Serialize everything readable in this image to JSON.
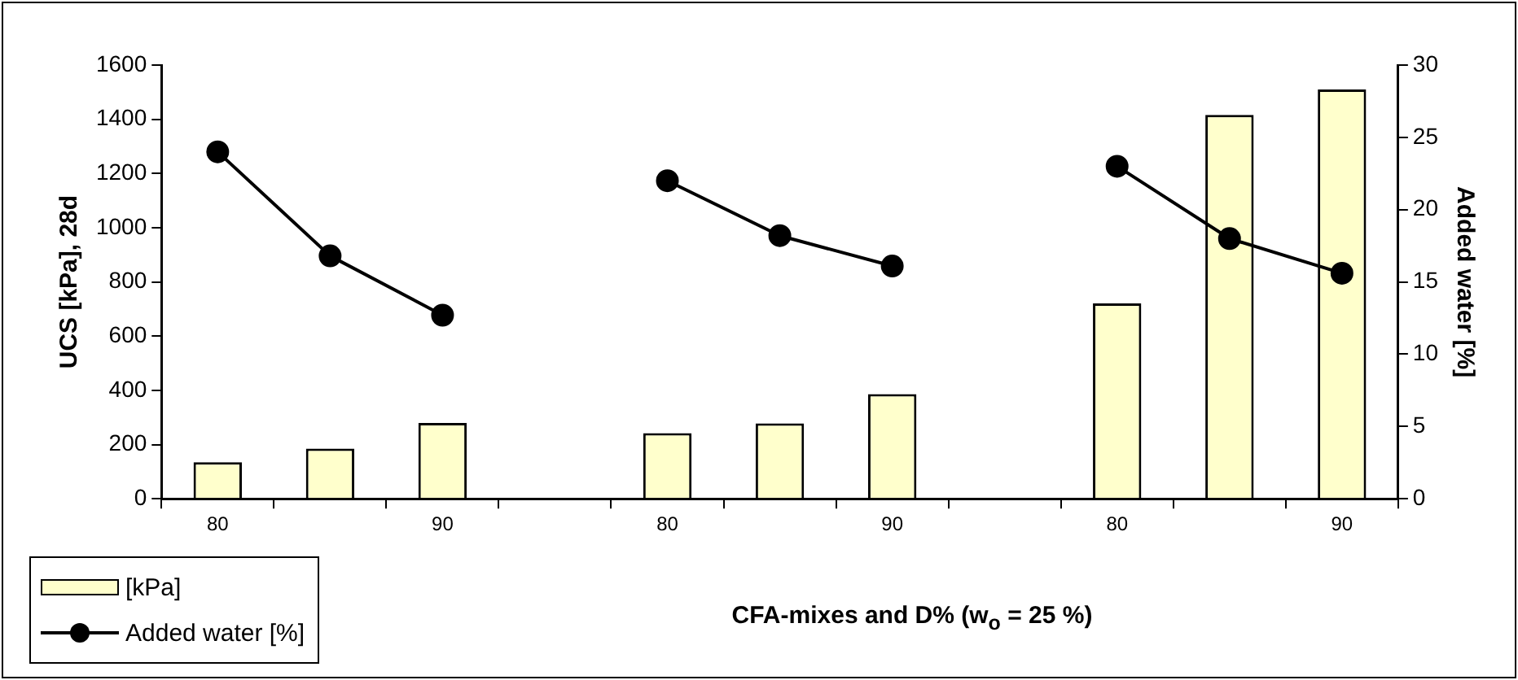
{
  "chart_data": {
    "type": "bar",
    "xlabel": "CFA-mixes and D% (w$_{o}$ = 25 %)",
    "ylabel": "UCS [kPa], 28d",
    "y2label": "Added water [%]",
    "categories": [
      "80",
      null,
      "90",
      null,
      "80",
      null,
      "90",
      null,
      "80",
      null,
      "90"
    ],
    "series": [
      {
        "name": "[kPa]",
        "color": "#ffffcc",
        "values": [
          135,
          185,
          280,
          null,
          242,
          278,
          386,
          null,
          721,
          1416,
          1510
        ]
      },
      {
        "name": "Added water [%]",
        "type": "line",
        "axis": "y2",
        "color": "#000000",
        "values": [
          24.0,
          16.8,
          12.7,
          null,
          22.0,
          18.2,
          16.1,
          null,
          23.0,
          18.0,
          15.6
        ]
      }
    ],
    "ylim": [
      0,
      1600
    ],
    "yticks": [
      0,
      200,
      400,
      600,
      800,
      1000,
      1200,
      1400,
      1600
    ],
    "y2lim": [
      0,
      30
    ],
    "y2ticks": [
      0,
      5,
      10,
      15,
      20,
      25,
      30
    ],
    "grid": false,
    "legend": "bottom left",
    "marker": "circle",
    "line_style": "solid"
  }
}
